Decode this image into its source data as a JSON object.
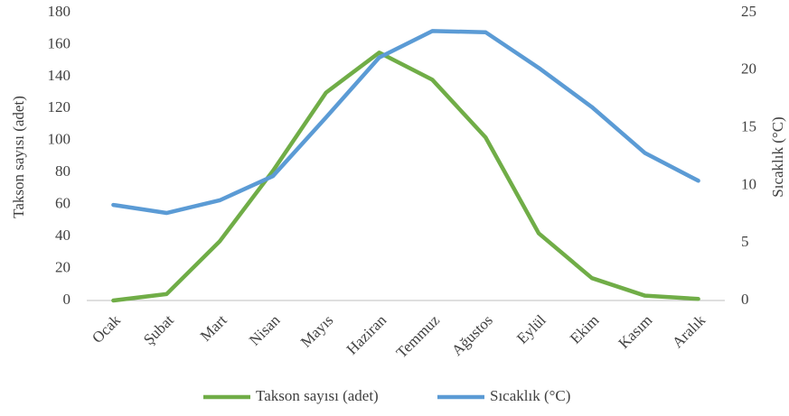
{
  "chart_data": {
    "type": "line",
    "categories": [
      "Ocak",
      "Şubat",
      "Mart",
      "Nisan",
      "Mayıs",
      "Haziran",
      "Temmuz",
      "Ağustos",
      "Eylül",
      "Ekim",
      "Kasım",
      "Aralık"
    ],
    "series": [
      {
        "name": "Takson sayısı (adet)",
        "color": "#70ad47",
        "axis": "y",
        "values": [
          0,
          4,
          37,
          81,
          130,
          155,
          138,
          102,
          42,
          14,
          3,
          1
        ]
      },
      {
        "name": "Sıcaklık (°C)",
        "color": "#5b9bd5",
        "axis": "y2",
        "values": [
          8.3,
          7.6,
          8.7,
          10.8,
          15.9,
          21.1,
          23.4,
          23.3,
          20.2,
          16.8,
          12.8,
          10.4
        ]
      }
    ],
    "ylabel": "Takson sayısı (adet)",
    "y2label": "Sıcaklık (°C)",
    "ylim": [
      0,
      180
    ],
    "yticks": [
      0,
      20,
      40,
      60,
      80,
      100,
      120,
      140,
      160,
      180
    ],
    "y2lim": [
      0,
      25
    ],
    "y2ticks": [
      0,
      5,
      10,
      15,
      20,
      25
    ],
    "legend": "bottom"
  }
}
